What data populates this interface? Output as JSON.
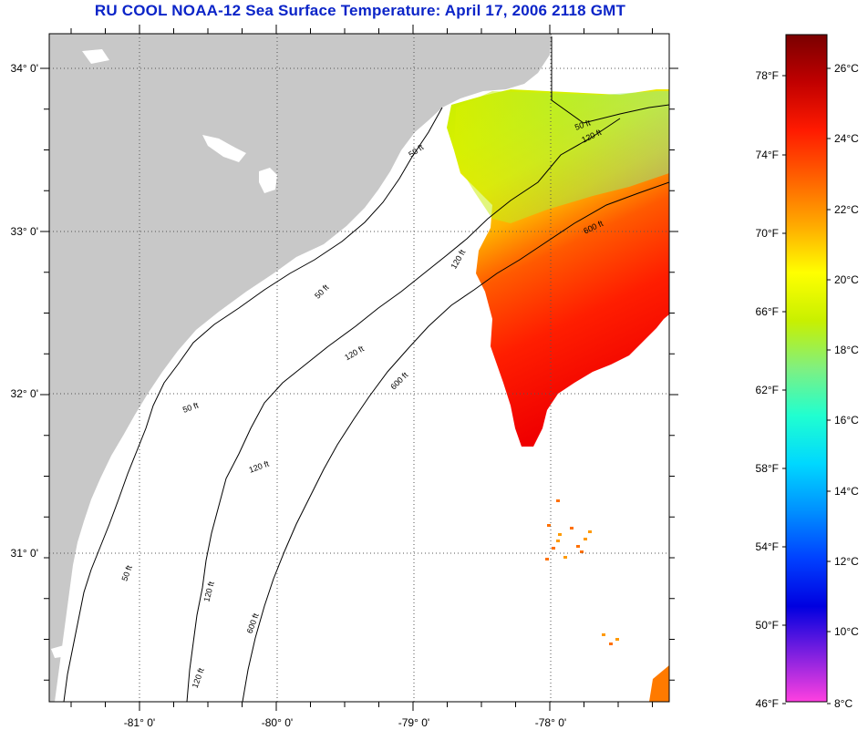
{
  "title": "RU COOL  NOAA-12  Sea Surface Temperature:  April 17, 2006 2118 GMT",
  "colors": {
    "title": "#0b24c8",
    "land": "#c8c8c8",
    "ocean": "#ffffff",
    "cloud": "#ffffff",
    "contour": "#000000",
    "grid": "#555555"
  },
  "map": {
    "lat_labels": [
      "34° 0'",
      "33° 0'",
      "32° 0'",
      "31° 0'"
    ],
    "lon_labels": [
      "-81° 0'",
      "-80° 0'",
      "-79° 0'",
      "-78° 0'"
    ],
    "contour_labels": [
      "50 ft",
      "50 ft",
      "50 ft",
      "50 ft",
      "50 ft",
      "120 ft",
      "120 ft",
      "120 ft",
      "120 ft",
      "120 ft",
      "120 ft",
      "600 ft",
      "600 ft",
      "600 ft"
    ]
  },
  "colorbar": {
    "fahrenheit_labels": [
      "78°F",
      "74°F",
      "70°F",
      "66°F",
      "62°F",
      "58°F",
      "54°F",
      "50°F",
      "46°F"
    ],
    "celsius_labels": [
      "26°C",
      "24°C",
      "22°C",
      "20°C",
      "18°C",
      "16°C",
      "14°C",
      "12°C",
      "10°C",
      "8°C"
    ],
    "gradient_stops": [
      "#7a0000",
      "#c00000",
      "#ff1a00",
      "#ff6000",
      "#ffaa00",
      "#ffff00",
      "#c8f000",
      "#80f080",
      "#20ffd0",
      "#00d8ff",
      "#0090ff",
      "#0040ff",
      "#0000e0",
      "#8020e0",
      "#ff40e0"
    ]
  }
}
